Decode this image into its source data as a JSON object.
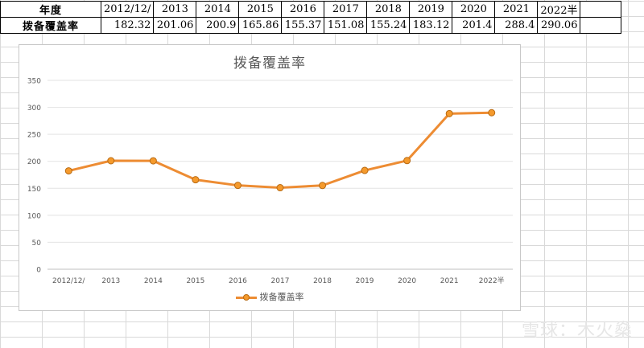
{
  "sheet": {
    "row1_label": "年度",
    "row2_label": "拨备覆盖率",
    "years": [
      "2012/12/",
      "2013",
      "2014",
      "2015",
      "2016",
      "2017",
      "2018",
      "2019",
      "2020",
      "2021",
      "2022半"
    ],
    "values": [
      "182.32",
      "201.06",
      "200.9",
      "165.86",
      "155.37",
      "151.08",
      "155.24",
      "183.12",
      "201.4",
      "288.4",
      "290.06"
    ]
  },
  "chart_data": {
    "type": "line",
    "title": "拨备覆盖率",
    "categories": [
      "2012/12/",
      "2013",
      "2014",
      "2015",
      "2016",
      "2017",
      "2018",
      "2019",
      "2020",
      "2021",
      "2022半"
    ],
    "series": [
      {
        "name": "拨备覆盖率",
        "values": [
          182.32,
          201.06,
          200.9,
          165.86,
          155.37,
          151.08,
          155.24,
          183.12,
          201.4,
          288.4,
          290.06
        ]
      }
    ],
    "ylim": [
      0,
      350
    ],
    "yticks": [
      "0",
      "50",
      "100",
      "150",
      "200",
      "250",
      "300",
      "350"
    ],
    "grid": true,
    "legend_position": "bottom",
    "line_color": "#ed8c33",
    "marker_color": "#f59a2c"
  },
  "watermark": "雪球：木火燊"
}
